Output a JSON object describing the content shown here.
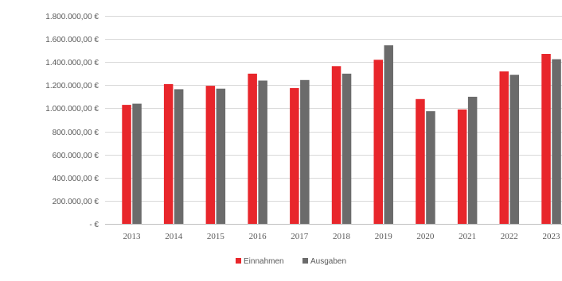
{
  "chart_data": {
    "type": "bar",
    "categories": [
      "2013",
      "2014",
      "2015",
      "2016",
      "2017",
      "2018",
      "2019",
      "2020",
      "2021",
      "2022",
      "2023"
    ],
    "series": [
      {
        "name": "Einnahmen",
        "color": "#e8262b",
        "values": [
          1030000,
          1210000,
          1195000,
          1300000,
          1175000,
          1365000,
          1420000,
          1080000,
          990000,
          1320000,
          1470000
        ]
      },
      {
        "name": "Ausgaben",
        "color": "#6b6b6b",
        "values": [
          1040000,
          1165000,
          1170000,
          1240000,
          1245000,
          1300000,
          1545000,
          975000,
          1100000,
          1290000,
          1425000
        ]
      }
    ],
    "ylim": [
      0,
      1800000
    ],
    "y_ticks": [
      0,
      200000,
      400000,
      600000,
      800000,
      1000000,
      1200000,
      1400000,
      1600000,
      1800000
    ],
    "y_tick_labels": [
      "- €",
      "200.000,00 €",
      "400.000,00 €",
      "600.000,00 €",
      "800.000,00 €",
      "1.000.000,00 €",
      "1.200.000,00 €",
      "1.400.000,00 €",
      "1.600.000,00 €",
      "1.800.000,00 €"
    ],
    "title": "",
    "xlabel": "",
    "ylabel": "",
    "grid": true,
    "legend_position": "bottom"
  }
}
